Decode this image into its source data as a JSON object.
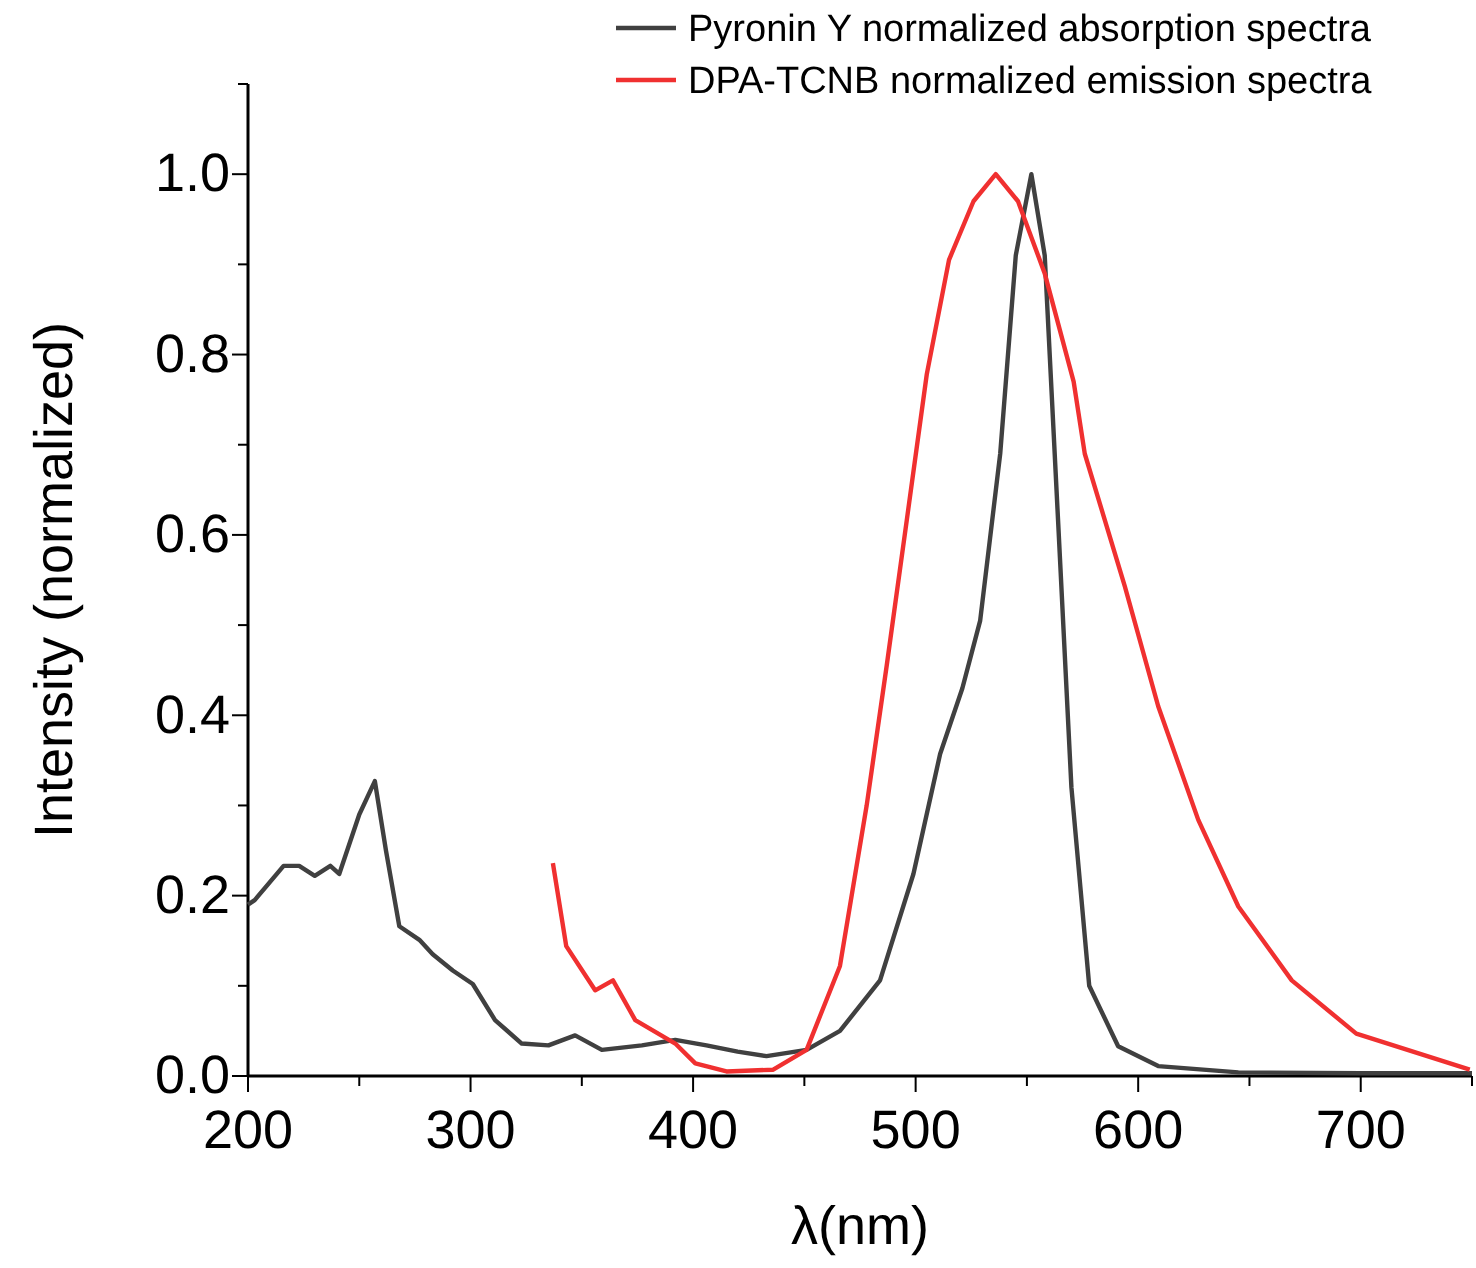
{
  "chart_data": {
    "type": "line",
    "xlabel": "λ(nm)",
    "ylabel": "Intensity (normalized)",
    "xlim": [
      200,
      750
    ],
    "ylim": [
      0,
      1.1
    ],
    "xticks": [
      200,
      {
        "value": 250,
        "label": null
      },
      300,
      {
        "value": 350,
        "label": null
      },
      400,
      {
        "value": 450,
        "label": null
      },
      500,
      {
        "value": 550,
        "label": null
      },
      600,
      {
        "value": 650,
        "label": null
      },
      700,
      {
        "value": 750,
        "label": null
      }
    ],
    "yticks": [
      {
        "value": 0,
        "label": "0.0"
      },
      {
        "value": 0.1,
        "label": null
      },
      0.2,
      {
        "value": 0.3,
        "label": null
      },
      0.4,
      {
        "value": 0.5,
        "label": null
      },
      0.6,
      {
        "value": 0.7,
        "label": null
      },
      0.8,
      {
        "value": 0.9,
        "label": null
      },
      {
        "value": 1,
        "label": "1.0"
      },
      {
        "value": 1.1,
        "label": null
      }
    ],
    "legend": "top right",
    "grid": false,
    "marker": "none",
    "line_style": "solid",
    "series": [
      {
        "name": "Pyronin Y normalized absorption spectra",
        "color": "#404040",
        "x": [
          200,
          203,
          216,
          223,
          230,
          237,
          241,
          250,
          257,
          262,
          268,
          277,
          283,
          292,
          301,
          311,
          323,
          335,
          347,
          359,
          377,
          392,
          406,
          420,
          433,
          451,
          466,
          484,
          499,
          511,
          521,
          529,
          538,
          545,
          552,
          558,
          564,
          570,
          578,
          591,
          609,
          645,
          700,
          750
        ],
        "values": [
          0.19,
          0.195,
          0.233,
          0.233,
          0.222,
          0.233,
          0.224,
          0.29,
          0.327,
          0.25,
          0.166,
          0.151,
          0.135,
          0.117,
          0.102,
          0.062,
          0.036,
          0.034,
          0.045,
          0.029,
          0.034,
          0.04,
          0.034,
          0.027,
          0.022,
          0.029,
          0.05,
          0.106,
          0.224,
          0.357,
          0.43,
          0.505,
          0.69,
          0.91,
          1.0,
          0.91,
          0.616,
          0.32,
          0.1,
          0.033,
          0.011,
          0.004,
          0.003,
          0.003
        ]
      },
      {
        "name": "DPA-TCNB normalized emission spectra",
        "color": "#f03030",
        "x": [
          337,
          343,
          356,
          364,
          374,
          392,
          401,
          415,
          436,
          451,
          466,
          478,
          487,
          496,
          505,
          515,
          526,
          536,
          546,
          558,
          571,
          576,
          594,
          609,
          627,
          645,
          669,
          698,
          749
        ],
        "values": [
          0.236,
          0.144,
          0.095,
          0.106,
          0.062,
          0.036,
          0.014,
          0.005,
          0.007,
          0.029,
          0.122,
          0.3,
          0.455,
          0.616,
          0.778,
          0.905,
          0.97,
          1.0,
          0.97,
          0.89,
          0.77,
          0.69,
          0.543,
          0.41,
          0.284,
          0.188,
          0.106,
          0.047,
          0.007
        ]
      }
    ]
  }
}
